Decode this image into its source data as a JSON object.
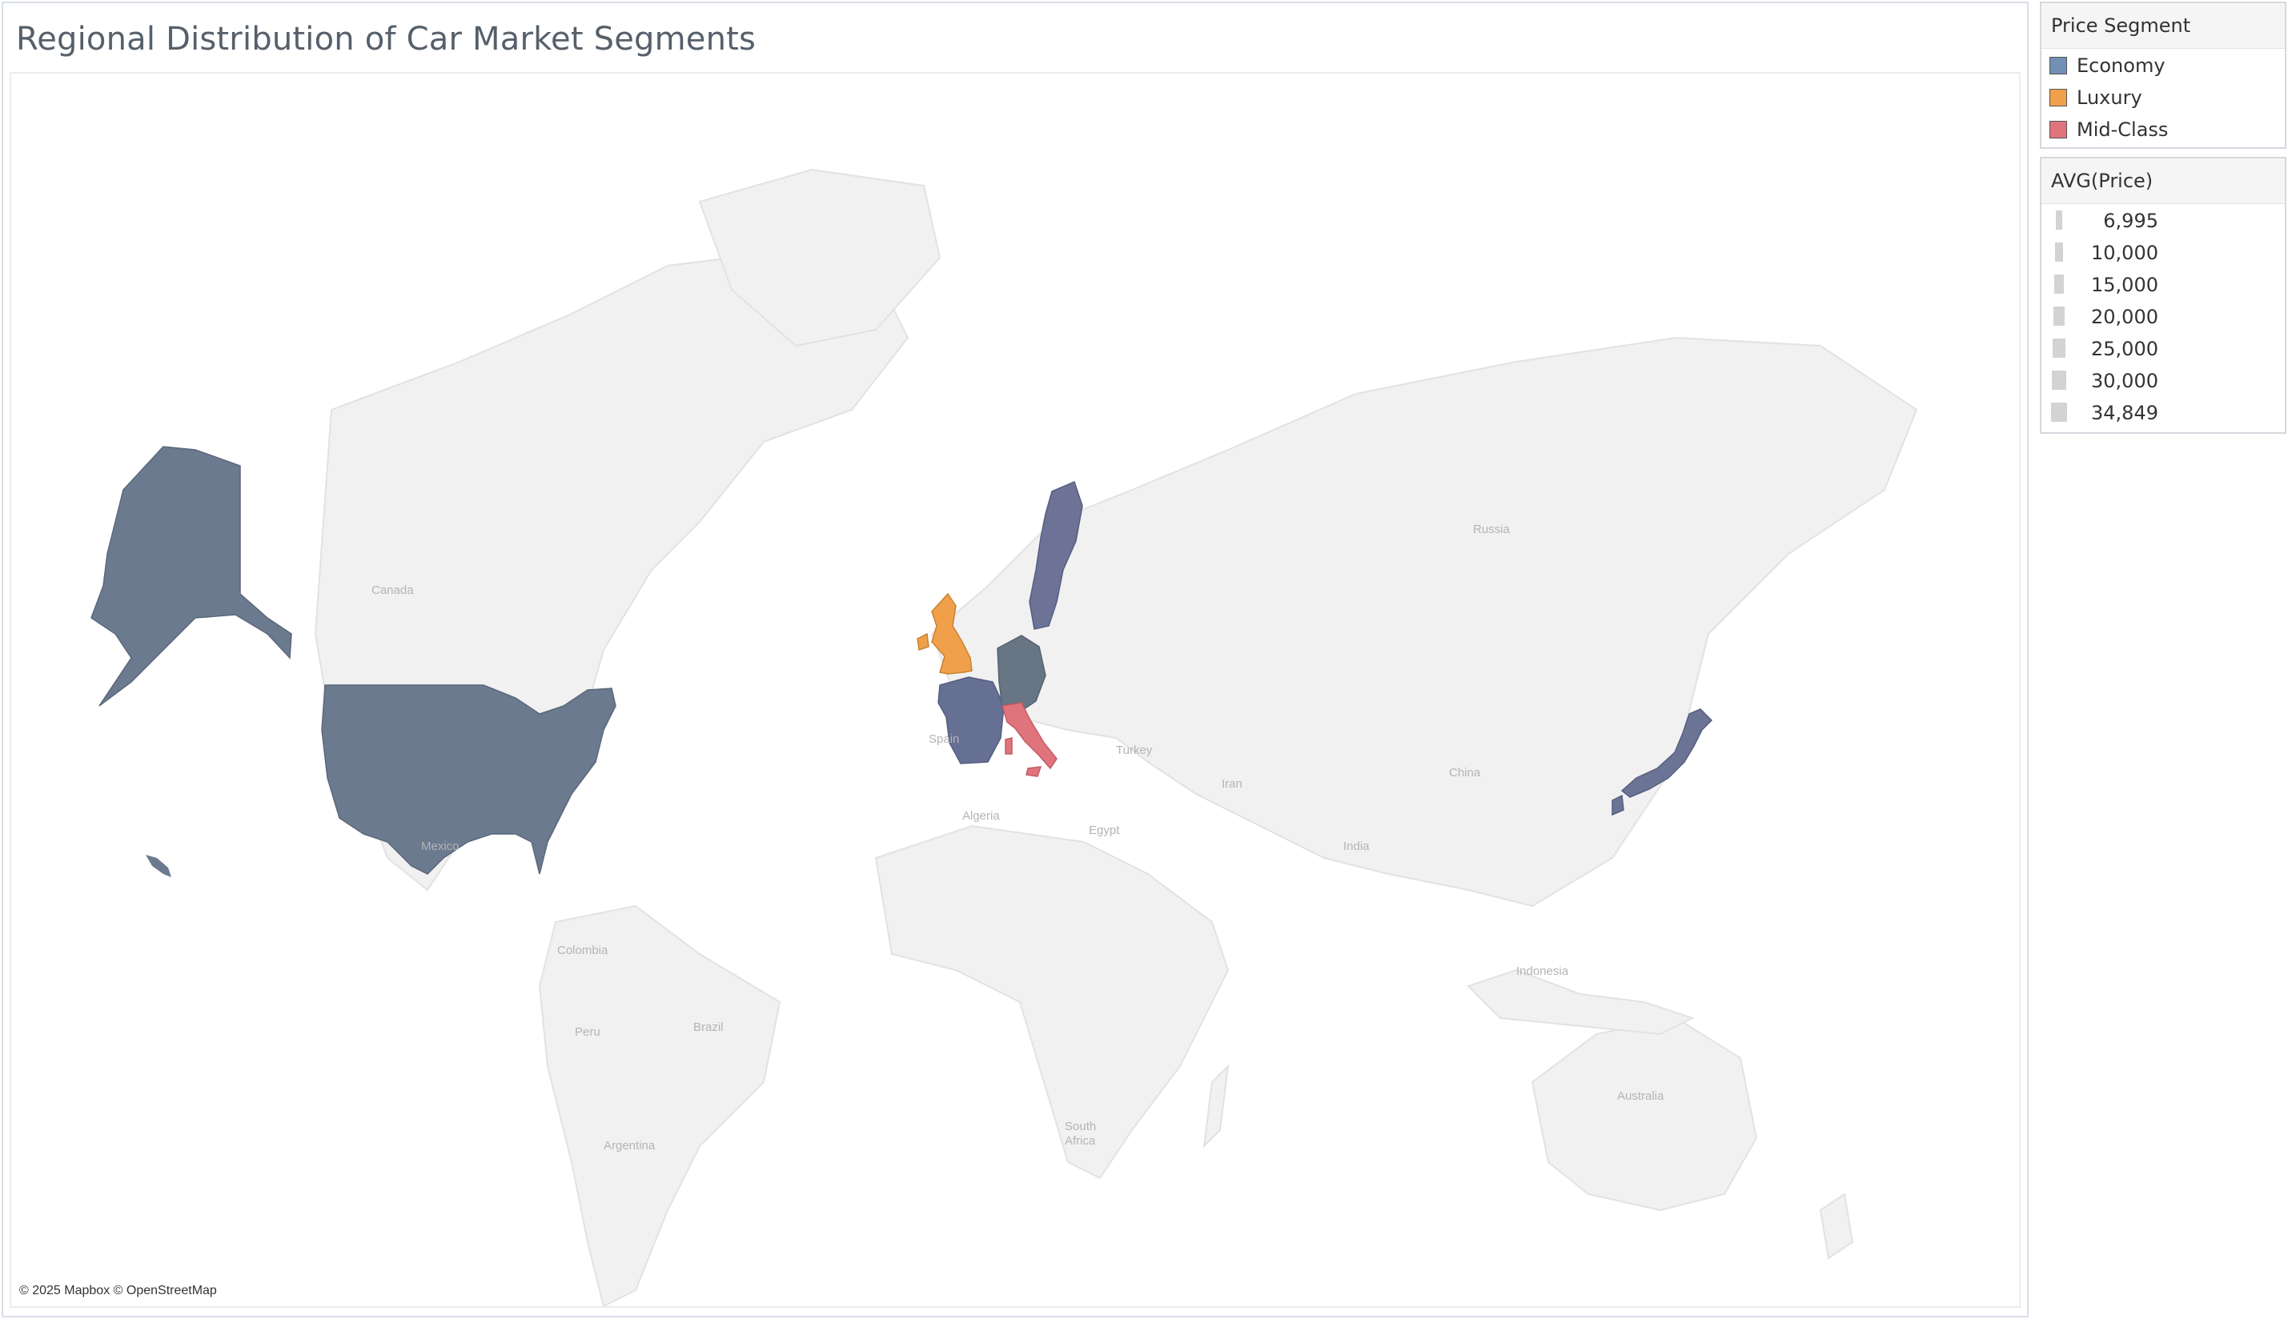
{
  "title": "Regional Distribution of Car Market Segments",
  "attribution": "© 2025 Mapbox © OpenStreetMap",
  "map_labels": {
    "canada": "Canada",
    "mexico": "Mexico",
    "colombia": "Colombia",
    "peru": "Peru",
    "brazil": "Brazil",
    "argentina": "Argentina",
    "spain": "Spain",
    "algeria": "Algeria",
    "egypt": "Egypt",
    "turkey": "Turkey",
    "iran": "Iran",
    "india": "India",
    "china": "China",
    "russia": "Russia",
    "indonesia": "Indonesia",
    "australia": "Australia",
    "south_africa_1": "South",
    "south_africa_2": "Africa"
  },
  "segment_legend": {
    "title": "Price Segment",
    "items": [
      {
        "label": "Economy",
        "color": "#7290b4"
      },
      {
        "label": "Luxury",
        "color": "#f0a04b"
      },
      {
        "label": "Mid-Class",
        "color": "#e0747c"
      }
    ]
  },
  "price_legend": {
    "title": "AVG(Price)",
    "values": [
      "6,995",
      "10,000",
      "15,000",
      "20,000",
      "25,000",
      "30,000",
      "34,849"
    ]
  },
  "map_data": {
    "countries": [
      {
        "name": "United States",
        "segment": "Economy",
        "color": "#6b7a8f"
      },
      {
        "name": "United Kingdom",
        "segment": "Luxury",
        "color": "#f0a04b"
      },
      {
        "name": "France",
        "segment": "Economy",
        "color": "#667094"
      },
      {
        "name": "Germany",
        "segment": "Economy",
        "color": "#677584"
      },
      {
        "name": "Sweden",
        "segment": "Economy",
        "color": "#6c7396"
      },
      {
        "name": "Italy",
        "segment": "Mid-Class",
        "color": "#e0747c"
      },
      {
        "name": "Japan",
        "segment": "Economy",
        "color": "#6c7496"
      }
    ]
  }
}
